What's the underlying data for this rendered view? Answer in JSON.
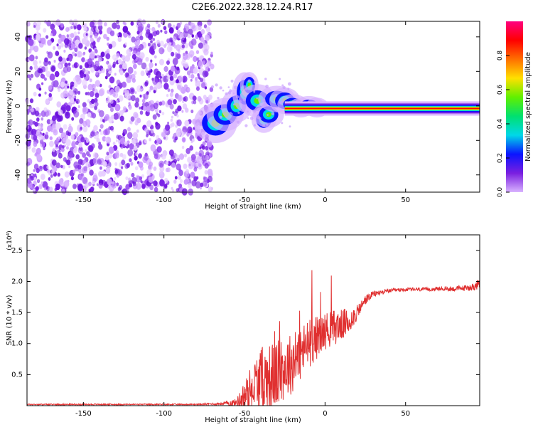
{
  "title": "C2E6.2022.328.12.24.R17",
  "chart_data": [
    {
      "type": "heatmap",
      "xlabel": "Height of straight line (km)",
      "ylabel": "Frequency (Hz)",
      "xlim": [
        -185,
        96
      ],
      "ylim": [
        -50,
        49
      ],
      "xticks": [
        -150,
        -100,
        -50,
        0,
        50
      ],
      "yticks": [
        -40,
        -20,
        0,
        20,
        40
      ],
      "colorbar": {
        "label": "Normalized spectral amplitude",
        "range": [
          0.0,
          1.0
        ],
        "ticks": [
          "0.0",
          "0.2",
          "0.4",
          "0.6",
          "0.8"
        ],
        "colormap": [
          "#d9b3ff",
          "#7a1fe0",
          "#0a14ff",
          "#00d8e8",
          "#00e070",
          "#60f000",
          "#ffe000",
          "#ff7000",
          "#ff0000",
          "#ff0080"
        ]
      },
      "features": {
        "noise_region_x": [
          -185,
          -70
        ],
        "signal_band_freq": -1.5,
        "signal_band_x": [
          -25,
          96
        ],
        "rising_signal_x": [
          -70,
          -25
        ]
      }
    },
    {
      "type": "line",
      "xlabel": "Height of straight line (km)",
      "ylabel": "SNR (10 * v/v)",
      "scale_label": "(x10⁴)",
      "xlim": [
        -185,
        96
      ],
      "ylim": [
        0,
        2.75
      ],
      "xticks": [
        -150,
        -100,
        -50,
        0,
        50
      ],
      "yticks": [
        0.5,
        1.0,
        1.5,
        2.0,
        2.5
      ],
      "series": [
        {
          "color": "#e03030",
          "x": [
            -185,
            -80,
            -65,
            -55,
            -50,
            -45,
            -40,
            -35,
            -30,
            -25,
            -20,
            -15,
            -10,
            -5,
            0,
            5,
            10,
            15,
            20,
            25,
            30,
            40,
            50,
            60,
            70,
            80,
            90,
            96
          ],
          "y": [
            0.02,
            0.02,
            0.03,
            0.05,
            0.15,
            0.3,
            0.4,
            0.45,
            0.5,
            0.6,
            0.7,
            0.85,
            1.0,
            1.1,
            1.2,
            1.25,
            1.3,
            1.35,
            1.5,
            1.7,
            1.8,
            1.85,
            1.87,
            1.87,
            1.88,
            1.88,
            1.9,
            1.95
          ],
          "noise_amplitude": [
            0.01,
            0.01,
            0.02,
            0.06,
            0.25,
            0.4,
            0.55,
            0.55,
            0.55,
            0.5,
            0.5,
            0.45,
            0.4,
            0.35,
            0.3,
            0.3,
            0.25,
            0.22,
            0.12,
            0.08,
            0.05,
            0.03,
            0.03,
            0.03,
            0.03,
            0.04,
            0.05,
            0.08
          ]
        }
      ]
    }
  ]
}
